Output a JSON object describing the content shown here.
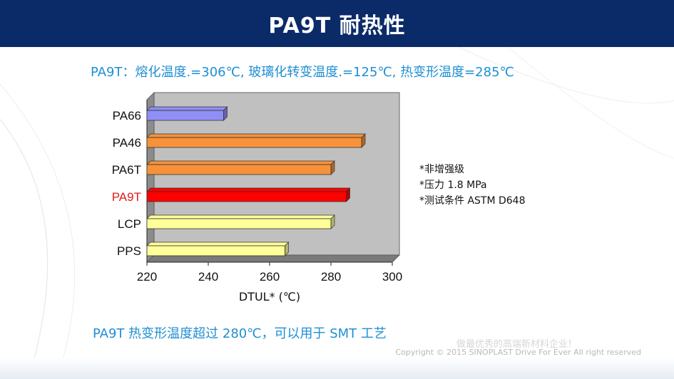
{
  "header": {
    "title": "PA9T  耐热性"
  },
  "subtitle": "PA9T：熔化温度.=306℃, 玻璃化转变温度.=125℃, 热变形温度=285℃",
  "notes": [
    "*非增强级",
    "*压力 1.8 MPa",
    "*测试条件 ASTM D648"
  ],
  "conclusion": "PA9T 热变形温度超过 280℃，可以用于 SMT 工艺",
  "footer": {
    "faded": "做最优秀的高端新材料企业！",
    "copyright": "Copyright © 2015 SINOPLAST Drive For Ever All right reserved"
  },
  "colors": {
    "header_bg": "#0b2b68",
    "accent_text": "#1f8fd3",
    "highlight_label": "#e31a1c",
    "plot_bg": "#c0c0c0"
  },
  "chart_data": {
    "type": "bar",
    "orientation": "horizontal",
    "categories": [
      "PA66",
      "PA46",
      "PA6T",
      "PA9T",
      "LCP",
      "PPS"
    ],
    "values": [
      245,
      290,
      280,
      285,
      280,
      265
    ],
    "bar_colors": [
      "#8f8ff5",
      "#f7923a",
      "#f7923a",
      "#ff0000",
      "#ffff99",
      "#ffff99"
    ],
    "highlight": "PA9T",
    "xlabel": "DTUL* (℃)",
    "ylabel": "",
    "title": "",
    "xlim": [
      220,
      300
    ],
    "xticks": [
      220,
      240,
      260,
      280,
      300
    ],
    "grid": false,
    "style": "3d"
  }
}
